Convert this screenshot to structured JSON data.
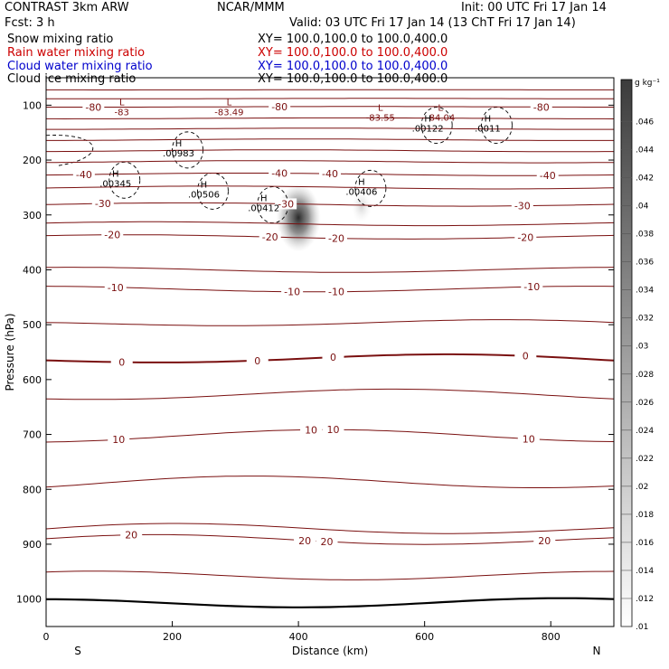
{
  "header": {
    "model": "CONTRAST  3km ARW",
    "center": "NCAR/MMM",
    "init": "Init: 00 UTC Fri 17 Jan 14",
    "fcst": "Fcst:    3 h",
    "valid": "Valid: 03 UTC Fri 17 Jan 14 (13 ChT Fri 17 Jan 14)"
  },
  "fields": [
    {
      "name": "Snow mixing ratio",
      "xy": "XY= 100.0,100.0 to 100.0,400.0",
      "color": "#000000"
    },
    {
      "name": "Rain water mixing ratio",
      "xy": "XY= 100.0,100.0 to 100.0,400.0",
      "color": "#cc0000"
    },
    {
      "name": "Cloud water mixing ratio",
      "xy": "XY= 100.0,100.0 to 100.0,400.0",
      "color": "#0000cc"
    },
    {
      "name": "Cloud ice mixing ratio",
      "xy": "XY= 100.0,100.0 to 100.0,400.0",
      "color": "#000000"
    }
  ],
  "colors": {
    "temperature_contour": "#7a1010",
    "frame": "#000000",
    "shading_dark": "#2a2a2a"
  },
  "chart_data": {
    "type": "cross-section",
    "xlabel": "Distance (km)",
    "ylabel": "Pressure (hPa)",
    "xlim": [
      0,
      900
    ],
    "ylim": [
      1050,
      50
    ],
    "x_ticks": [
      0,
      200,
      400,
      600,
      800
    ],
    "y_ticks": [
      100,
      200,
      300,
      400,
      500,
      600,
      700,
      800,
      900,
      1000
    ],
    "endpoint_left": "S",
    "endpoint_right": "N",
    "colorbar": {
      "unit": "g kg⁻¹",
      "labels": [
        ".046",
        ".044",
        ".042",
        ".04",
        ".038",
        ".036",
        ".034",
        ".032",
        ".03",
        ".028",
        ".026",
        ".024",
        ".022",
        ".02",
        ".018",
        ".016",
        ".014",
        ".012",
        ".01"
      ]
    },
    "temperature_contours": [
      {
        "p": 72
      },
      {
        "p": 88
      },
      {
        "p": 103,
        "labels": [
          {
            "x": 75,
            "text": "-80"
          },
          {
            "x": 370,
            "text": "-80"
          },
          {
            "x": 785,
            "text": "-80"
          }
        ]
      },
      {
        "p": 124
      },
      {
        "p": 143
      },
      {
        "p": 163
      },
      {
        "p": 183
      },
      {
        "p": 203
      },
      {
        "p": 226,
        "labels": [
          {
            "x": 60,
            "text": "-40"
          },
          {
            "x": 370,
            "text": "-40"
          },
          {
            "x": 450,
            "text": "-40"
          },
          {
            "x": 795,
            "text": "-40"
          }
        ]
      },
      {
        "p": 250
      },
      {
        "p": 281,
        "labels": [
          {
            "x": 90,
            "text": "-30"
          },
          {
            "x": 380,
            "text": "-30"
          },
          {
            "x": 755,
            "text": "-30"
          }
        ]
      },
      {
        "p": 316
      },
      {
        "p": 340,
        "labels": [
          {
            "x": 105,
            "text": "-20"
          },
          {
            "x": 355,
            "text": "-20"
          },
          {
            "x": 460,
            "text": "-20"
          },
          {
            "x": 760,
            "text": "-20"
          }
        ]
      },
      {
        "p": 400
      },
      {
        "p": 435,
        "labels": [
          {
            "x": 110,
            "text": "-10"
          },
          {
            "x": 390,
            "text": "-10"
          },
          {
            "x": 460,
            "text": "-10"
          },
          {
            "x": 770,
            "text": "-10"
          }
        ]
      },
      {
        "p": 500
      },
      {
        "p": 565,
        "bold": true,
        "labels": [
          {
            "x": 120,
            "text": "0"
          },
          {
            "x": 335,
            "text": "0"
          },
          {
            "x": 455,
            "text": "0"
          },
          {
            "x": 760,
            "text": "0"
          }
        ]
      },
      {
        "p": 630
      },
      {
        "p": 705,
        "labels": [
          {
            "x": 115,
            "text": "10"
          },
          {
            "x": 420,
            "text": "10"
          },
          {
            "x": 455,
            "text": "10"
          },
          {
            "x": 765,
            "text": "10"
          }
        ]
      },
      {
        "p": 790
      },
      {
        "p": 875
      },
      {
        "p": 895,
        "labels": [
          {
            "x": 135,
            "text": "20"
          },
          {
            "x": 410,
            "text": "20"
          },
          {
            "x": 445,
            "text": "20"
          },
          {
            "x": 790,
            "text": "20"
          }
        ]
      },
      {
        "p": 960
      },
      {
        "p": 1010,
        "bold": true
      }
    ],
    "extrema": [
      {
        "kind": "L",
        "x": 120,
        "p": 100,
        "value": "-83"
      },
      {
        "kind": "L",
        "x": 290,
        "p": 100,
        "value": "-83.49"
      },
      {
        "kind": "L",
        "x": 530,
        "p": 110,
        "value": "-83.55"
      },
      {
        "kind": "L",
        "x": 625,
        "p": 110,
        "value": "-84.04"
      },
      {
        "kind": "H",
        "x": 605,
        "p": 130,
        "value": ".00122"
      },
      {
        "kind": "H",
        "x": 700,
        "p": 130,
        "value": ".0011"
      },
      {
        "kind": "H",
        "x": 210,
        "p": 175,
        "value": ".00983"
      },
      {
        "kind": "H",
        "x": 110,
        "p": 230,
        "value": ".00345"
      },
      {
        "kind": "H",
        "x": 250,
        "p": 250,
        "value": ".00506"
      },
      {
        "kind": "H",
        "x": 345,
        "p": 275,
        "value": ".00412"
      },
      {
        "kind": "H",
        "x": 500,
        "p": 245,
        "value": ".00406"
      }
    ],
    "max_shading": [
      {
        "x": 400,
        "p": 305,
        "value": 0.046
      },
      {
        "x": 500,
        "p": 285,
        "value": 0.012
      }
    ]
  }
}
